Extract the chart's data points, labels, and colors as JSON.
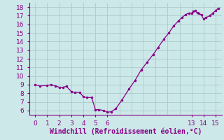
{
  "title": "",
  "xlabel": "Windchill (Refroidissement éolien,°C)",
  "ylabel": "",
  "background_color": "#cce8e8",
  "line_color": "#880088",
  "marker_color": "#880088",
  "xlim": [
    -0.5,
    15.5
  ],
  "ylim": [
    5.5,
    18.5
  ],
  "xticks": [
    0,
    1,
    2,
    3,
    4,
    5,
    6,
    13,
    14,
    15
  ],
  "yticks": [
    6,
    7,
    8,
    9,
    10,
    11,
    12,
    13,
    14,
    15,
    16,
    17,
    18
  ],
  "grid_xticks": [
    0,
    1,
    2,
    3,
    4,
    5,
    6,
    7,
    8,
    9,
    10,
    11,
    12,
    13,
    14,
    15
  ],
  "grid_color": "#aacccc",
  "x": [
    0,
    0.4,
    1.0,
    1.3,
    1.7,
    2.0,
    2.3,
    2.6,
    3.0,
    3.3,
    3.7,
    4.0,
    4.3,
    4.7,
    5.0,
    5.3,
    5.7,
    6.0,
    6.3,
    6.7,
    7.2,
    7.8,
    8.3,
    8.8,
    9.3,
    9.8,
    10.2,
    10.7,
    11.1,
    11.5,
    11.9,
    12.2,
    12.5,
    12.8,
    13.0,
    13.15,
    13.3,
    13.45,
    13.6,
    13.8,
    14.0,
    14.2,
    14.5,
    14.75,
    15.0,
    15.2
  ],
  "y": [
    9.0,
    8.85,
    8.9,
    9.0,
    8.85,
    8.7,
    8.7,
    8.8,
    8.2,
    8.1,
    8.1,
    7.6,
    7.5,
    7.5,
    6.1,
    6.1,
    6.0,
    5.8,
    5.85,
    6.2,
    7.2,
    8.5,
    9.5,
    10.7,
    11.6,
    12.5,
    13.3,
    14.3,
    15.0,
    15.8,
    16.4,
    16.8,
    17.15,
    17.3,
    17.3,
    17.5,
    17.6,
    17.35,
    17.25,
    17.1,
    16.6,
    16.8,
    17.0,
    17.3,
    17.6,
    17.85
  ],
  "font_color": "#880088",
  "tick_label_fontsize": 6.5,
  "xlabel_fontsize": 7.0
}
